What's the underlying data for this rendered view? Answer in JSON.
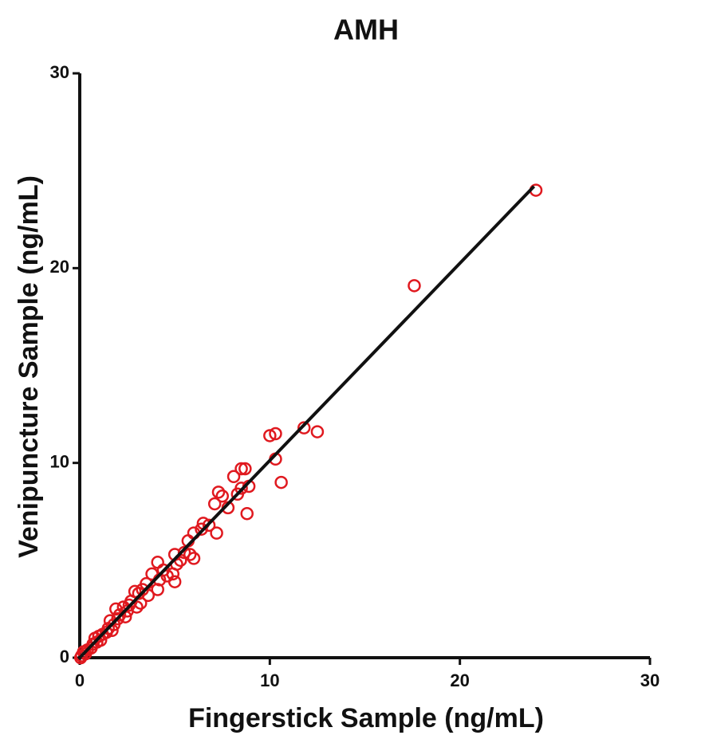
{
  "chart_data": {
    "type": "scatter",
    "title": "AMH",
    "x_label": "Fingerstick Sample (ng/mL)",
    "y_label": "Venipuncture Sample (ng/mL)",
    "xlim": [
      0,
      30
    ],
    "ylim": [
      0,
      30
    ],
    "xticks": [
      0,
      10,
      20,
      30
    ],
    "yticks": [
      0,
      10,
      20,
      30
    ],
    "grid": false,
    "series": [
      {
        "color": "#e0191f",
        "x": [
          24.0,
          17.6,
          12.5,
          11.8,
          10.0,
          10.3,
          10.3,
          10.6,
          8.8,
          8.9,
          8.5,
          8.7,
          8.1,
          8.3,
          8.5,
          7.8,
          7.3,
          7.1,
          7.5,
          7.2,
          6.8,
          6.5,
          6.4,
          6.0,
          5.7,
          6.0,
          5.8,
          5.5,
          5.0,
          5.1,
          4.9,
          5.0,
          4.4,
          4.1,
          4.2,
          4.1,
          3.8,
          3.5,
          3.3,
          3.1,
          2.9,
          3.2,
          3.0,
          2.7,
          2.5,
          2.3,
          2.1,
          1.9,
          2.0,
          1.8,
          1.6,
          1.5,
          1.4,
          1.2,
          1.0,
          0.9,
          0.7,
          0.6,
          0.4,
          0.3,
          0.2,
          0.1,
          0.05,
          2.4,
          1.7,
          1.1,
          0.8,
          2.6,
          3.6,
          4.6,
          5.3
        ],
        "values": [
          24.0,
          19.1,
          11.6,
          11.8,
          11.4,
          11.5,
          10.2,
          9.0,
          7.4,
          8.8,
          9.7,
          9.7,
          9.3,
          8.4,
          8.7,
          7.7,
          8.5,
          7.9,
          8.3,
          6.4,
          6.8,
          6.9,
          6.6,
          6.4,
          6.0,
          5.1,
          5.3,
          5.4,
          5.3,
          4.8,
          4.3,
          3.9,
          4.5,
          4.9,
          4.0,
          3.5,
          4.3,
          3.8,
          3.5,
          3.3,
          3.4,
          2.8,
          2.6,
          2.9,
          2.4,
          2.6,
          2.2,
          2.5,
          2.0,
          1.7,
          1.9,
          1.5,
          1.3,
          1.2,
          1.1,
          0.8,
          0.7,
          0.5,
          0.4,
          0.2,
          0.3,
          0.1,
          0.0,
          2.1,
          1.4,
          0.9,
          1.0,
          2.7,
          3.2,
          4.2,
          5.0
        ]
      }
    ],
    "fit_line": {
      "color": "#111111",
      "x": [
        0,
        23.9
      ],
      "values": [
        0,
        24.2
      ]
    }
  }
}
